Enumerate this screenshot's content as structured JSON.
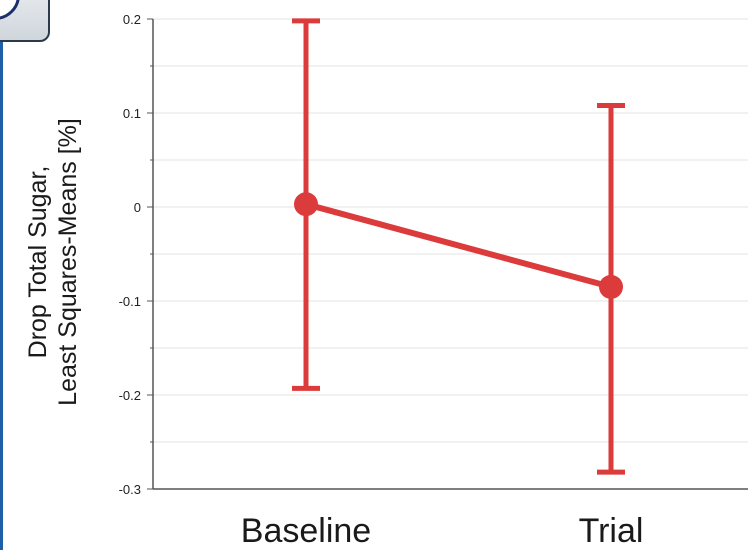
{
  "chart_data": {
    "type": "line",
    "categories": [
      "Baseline",
      "Trial"
    ],
    "series": [
      {
        "values": [
          0.003,
          -0.085
        ],
        "error_low": [
          -0.193,
          -0.282
        ],
        "error_high": [
          0.198,
          0.108
        ],
        "color": "#dc3b3b"
      }
    ],
    "ylabel_lines": [
      "Drop Total Sugar,",
      "Least Squares-Means [%]"
    ],
    "xlabel": "",
    "ylim": [
      -0.3,
      0.2
    ],
    "yticks": [
      "0.2",
      "0.1",
      "0",
      "-0.1",
      "-0.2",
      "-0.3"
    ],
    "grid": true
  },
  "colors": {
    "series": "#dc3b3b",
    "grid": "#e3e3e3",
    "axis": "#555555",
    "frame": "#1f5fa8"
  }
}
